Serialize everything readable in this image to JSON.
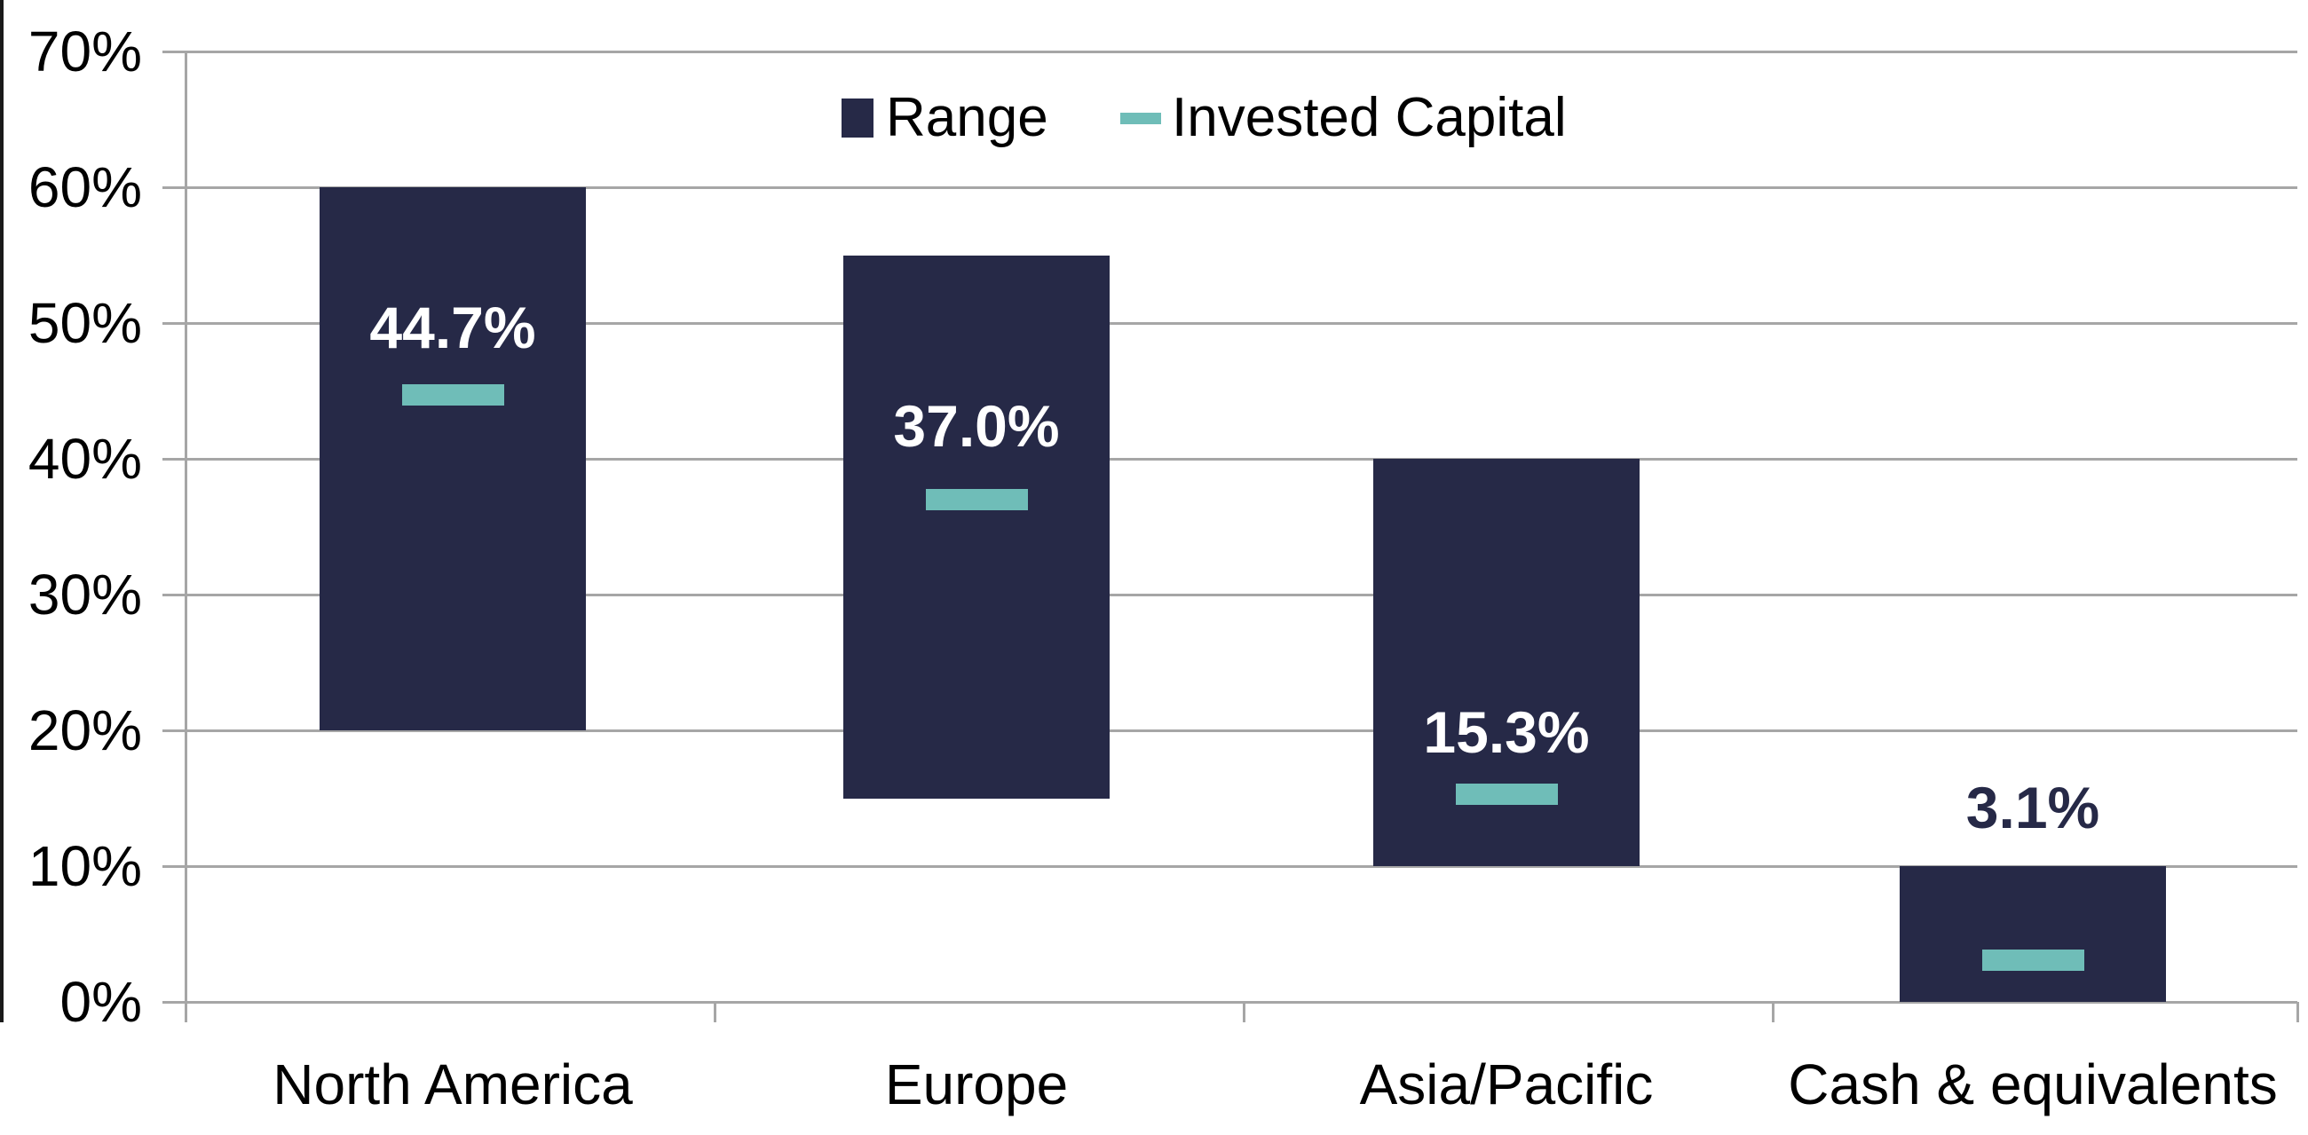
{
  "chart_data": {
    "type": "bar",
    "subtype": "floating-range-bars-with-value-markers",
    "title": "",
    "categories": [
      "North America",
      "Europe",
      "Asia/Pacific",
      "Cash & equivalents"
    ],
    "series": [
      {
        "name": "Range",
        "type": "range-bar",
        "color": "#262947",
        "ranges_pct": [
          [
            20,
            60
          ],
          [
            15,
            55
          ],
          [
            10,
            40
          ],
          [
            0,
            10
          ]
        ]
      },
      {
        "name": "Invested Capital",
        "type": "tick-marker",
        "color": "#6FBDB8",
        "values_pct": [
          44.7,
          37.0,
          15.3,
          3.1
        ],
        "data_labels": [
          "44.7%",
          "37.0%",
          "15.3%",
          "3.1%"
        ],
        "data_label_colors": [
          "#FFFFFF",
          "#FFFFFF",
          "#FFFFFF",
          "#262947"
        ],
        "data_label_center_pct": [
          49.7,
          42.4,
          19.9,
          14.3
        ]
      }
    ],
    "y_axis": {
      "min": 0,
      "max": 70,
      "step": 10,
      "tick_labels": [
        "0%",
        "10%",
        "20%",
        "30%",
        "40%",
        "50%",
        "60%",
        "70%"
      ],
      "format": "percent"
    },
    "x_axis": {
      "labels": [
        "North America",
        "Europe",
        "Asia/Pacific",
        "Cash & equivalents"
      ]
    },
    "grid": true,
    "legend_position": "top-center"
  },
  "colors": {
    "range_bar": "#262947",
    "invested_marker": "#6FBDB8",
    "gridline": "#A6A6A6",
    "background": "#FFFFFF",
    "left_border": "#1A1A1A",
    "axis_text": "#000000"
  }
}
